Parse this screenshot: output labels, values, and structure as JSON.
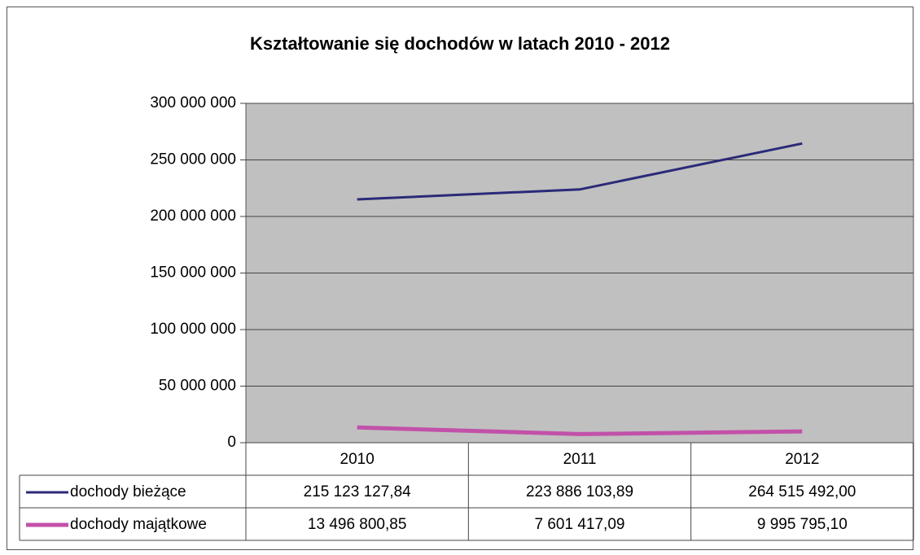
{
  "chart_data": {
    "type": "line",
    "title": "Kształtowanie się dochodów w latach 2010 - 2012",
    "categories": [
      "2010",
      "2011",
      "2012"
    ],
    "series": [
      {
        "name": "dochody bieżące",
        "color": "#2b2a78",
        "values": [
          215123127.84,
          223886103.89,
          264515492.0
        ],
        "value_labels": [
          "215 123 127,84",
          "223 886 103,89",
          "264 515 492,00"
        ]
      },
      {
        "name": "dochody majątkowe",
        "color": "#c251a9",
        "values": [
          13496800.85,
          7601417.09,
          9995795.1
        ],
        "value_labels": [
          "13 496 800,85",
          "7 601 417,09",
          "9 995 795,10"
        ]
      }
    ],
    "ylim": [
      0,
      300000000
    ],
    "yticks": [
      0,
      {
        "value": 50000000,
        "label": "50 000 000"
      },
      {
        "value": 100000000,
        "label": "100 000 000"
      },
      {
        "value": 150000000,
        "label": "150 000 000"
      },
      {
        "value": 200000000,
        "label": "200 000 000"
      },
      {
        "value": 250000000,
        "label": "250 000 000"
      },
      {
        "value": 300000000,
        "label": "300 000 000"
      }
    ],
    "grid": true,
    "plot_background": "#c0c0c0"
  }
}
